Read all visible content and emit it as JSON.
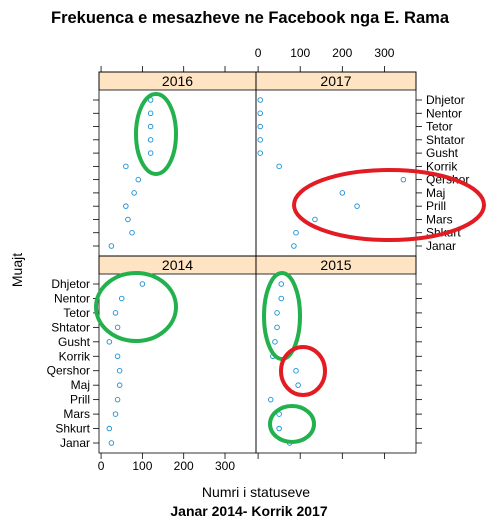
{
  "chart_data": {
    "type": "scatter",
    "title": "Frekuenca e mesazheve ne Facebook nga E. Rama",
    "xlabel": "Numri i statuseve",
    "ylabel": "Muajt",
    "subtitle": "Janar 2014- Korrik 2017",
    "xlim": [
      -5,
      375
    ],
    "x_ticks": [
      0,
      100,
      200,
      300
    ],
    "months": [
      "Janar",
      "Shkurt",
      "Mars",
      "Prill",
      "Maj",
      "Qershor",
      "Korrik",
      "Gusht",
      "Shtator",
      "Tetor",
      "Nentor",
      "Dhjetor"
    ],
    "point_color": "#1a8fd0",
    "strip_color": "#ffe4c4",
    "panels": [
      {
        "label": "2014",
        "values": [
          25,
          20,
          35,
          40,
          45,
          45,
          40,
          20,
          40,
          35,
          50,
          100
        ]
      },
      {
        "label": "2015",
        "values": [
          75,
          50,
          50,
          30,
          95,
          90,
          35,
          40,
          45,
          45,
          55,
          55
        ]
      },
      {
        "label": "2016",
        "values": [
          25,
          75,
          65,
          60,
          80,
          90,
          60,
          120,
          120,
          120,
          120,
          120
        ]
      },
      {
        "label": "2017",
        "values": [
          85,
          90,
          135,
          235,
          200,
          345,
          50,
          5,
          5,
          5,
          5,
          5
        ]
      }
    ],
    "annotations": {
      "stroke_width_note": "hand-drawn ellipses highlighting patterns",
      "green": "#22b14c",
      "red": "#e31b23"
    }
  }
}
